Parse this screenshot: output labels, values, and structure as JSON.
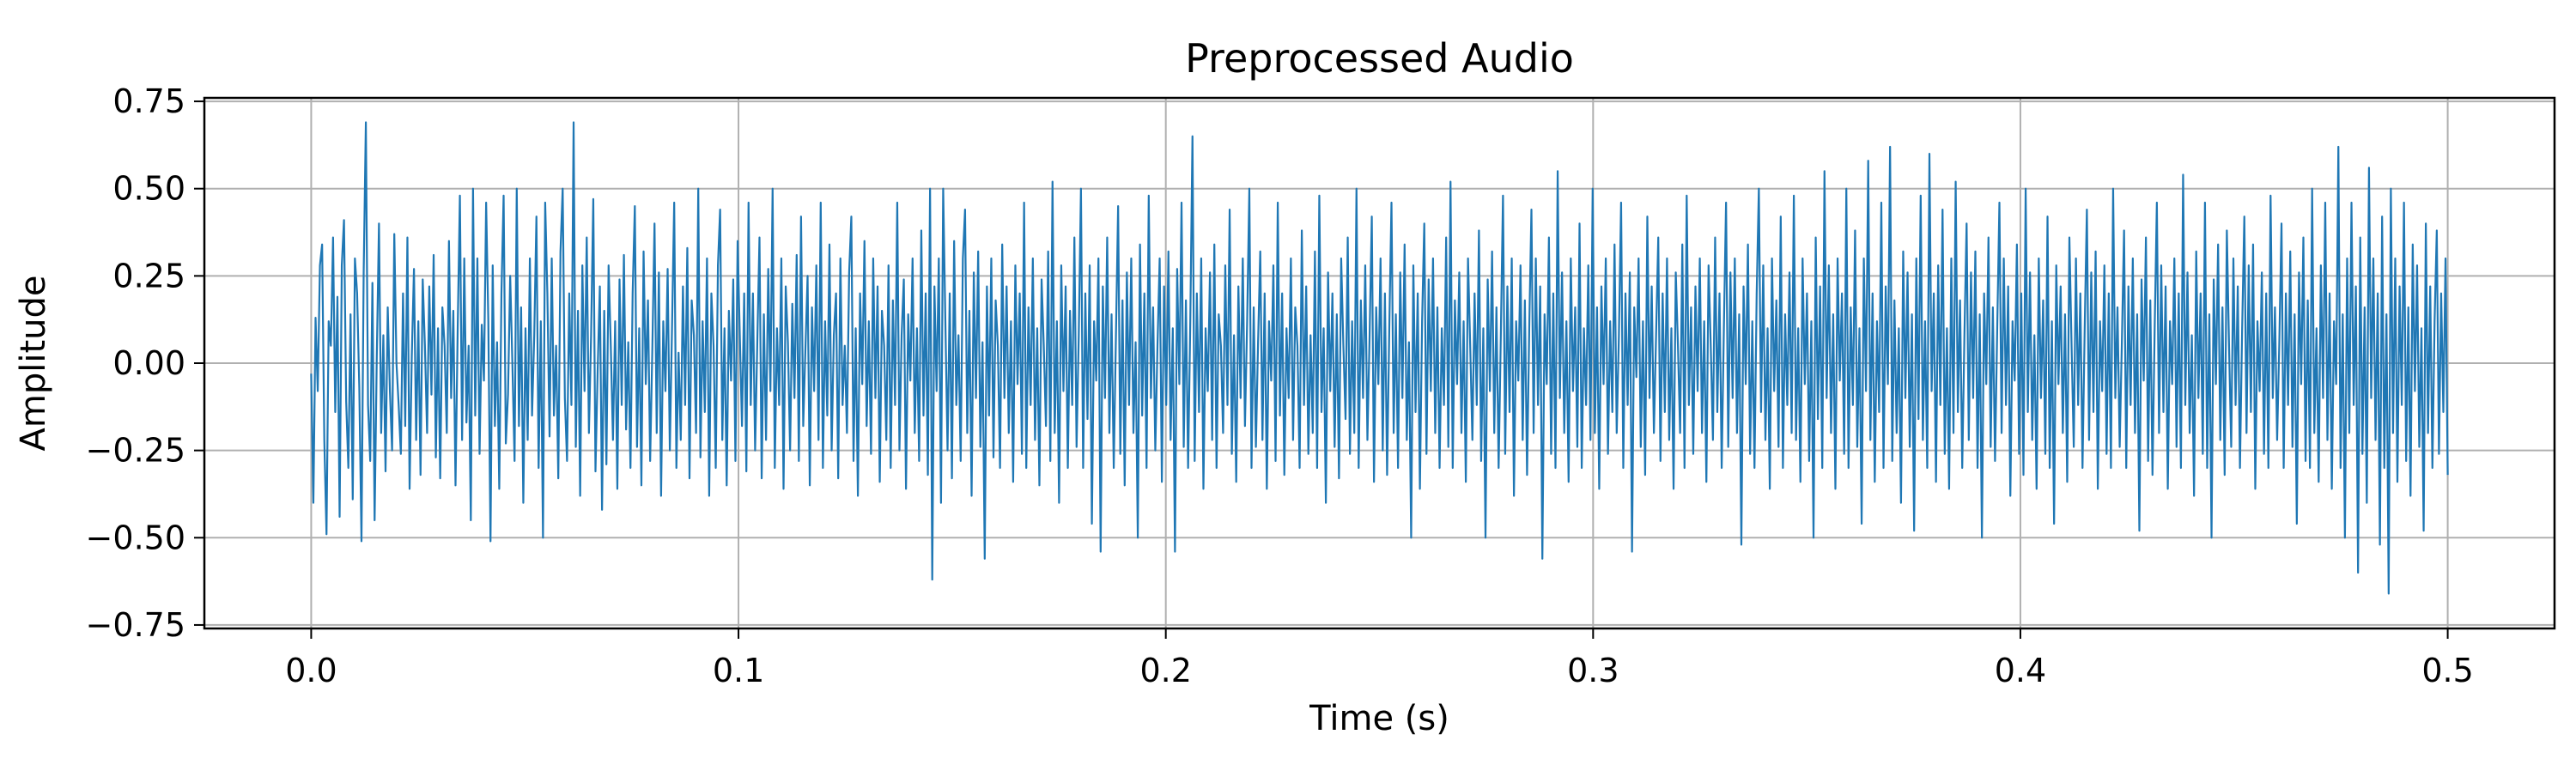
{
  "chart_data": {
    "type": "line",
    "title": "Preprocessed Audio",
    "xlabel": "Time (s)",
    "ylabel": "Amplitude",
    "xlim": [
      -0.025,
      0.525
    ],
    "ylim": [
      -0.76,
      0.76
    ],
    "xticks": [
      0.0,
      0.1,
      0.2,
      0.3,
      0.4,
      0.5
    ],
    "xtick_labels": [
      "0.0",
      "0.1",
      "0.2",
      "0.3",
      "0.4",
      "0.5"
    ],
    "yticks": [
      0.75,
      0.5,
      0.25,
      0.0,
      -0.25,
      -0.5,
      -0.75
    ],
    "ytick_labels": [
      "0.75",
      "0.50",
      "0.25",
      "0.00",
      "−0.25",
      "−0.50",
      "−0.75"
    ],
    "grid": true,
    "legend": "none",
    "colors": {
      "series": "#1f77b4",
      "grid": "#b0b0b0",
      "frame": "#000000"
    },
    "series": [
      {
        "x_start": 0.0,
        "x_end": 0.5,
        "values": [
          -0.03,
          -0.4,
          0.13,
          -0.08,
          0.28,
          0.34,
          -0.22,
          -0.49,
          0.12,
          0.05,
          0.36,
          -0.14,
          0.19,
          -0.44,
          0.28,
          0.41,
          -0.11,
          -0.3,
          0.14,
          -0.39,
          0.3,
          0.2,
          -0.07,
          -0.51,
          0.26,
          0.69,
          -0.12,
          -0.28,
          0.23,
          -0.45,
          0.02,
          0.4,
          -0.2,
          0.08,
          -0.31,
          0.16,
          -0.08,
          -0.25,
          0.37,
          0.0,
          -0.12,
          -0.26,
          0.2,
          -0.18,
          0.36,
          -0.36,
          0.02,
          0.27,
          -0.22,
          0.12,
          -0.32,
          0.24,
          0.05,
          -0.2,
          0.22,
          -0.09,
          0.31,
          -0.27,
          0.1,
          -0.33,
          0.16,
          0.05,
          -0.2,
          0.35,
          -0.1,
          0.15,
          -0.35,
          0.1,
          0.48,
          -0.22,
          0.3,
          -0.17,
          0.05,
          -0.45,
          0.5,
          -0.15,
          0.3,
          -0.26,
          0.11,
          -0.05,
          0.46,
          0.12,
          -0.51,
          0.28,
          -0.18,
          0.06,
          -0.36,
          0.2,
          0.48,
          -0.23,
          -0.09,
          0.25,
          0.0,
          -0.28,
          0.5,
          -0.18,
          0.16,
          -0.4,
          0.1,
          -0.22,
          0.3,
          -0.15,
          0.08,
          0.42,
          -0.3,
          0.12,
          -0.5,
          0.46,
          0.2,
          -0.21,
          0.3,
          -0.15,
          0.05,
          -0.33,
          0.32,
          0.5,
          -0.1,
          -0.28,
          0.2,
          -0.12,
          0.69,
          -0.24,
          0.15,
          -0.38,
          0.28,
          -0.08,
          0.36,
          -0.2,
          0.08,
          0.47,
          -0.31,
          -0.02,
          0.22,
          -0.42,
          0.15,
          -0.29,
          0.28,
          0.05,
          -0.22,
          0.12,
          -0.36,
          0.24,
          -0.12,
          0.31,
          -0.19,
          0.06,
          -0.3,
          0.2,
          0.45,
          -0.24,
          0.1,
          -0.35,
          0.32,
          -0.06,
          0.18,
          -0.28,
          0.04,
          0.4,
          -0.2,
          0.26,
          -0.38,
          0.12,
          -0.08,
          0.27,
          -0.25,
          0.1,
          0.46,
          -0.3,
          0.03,
          -0.22,
          0.22,
          -0.12,
          0.33,
          -0.33,
          0.18,
          0.08,
          -0.2,
          0.5,
          -0.27,
          0.12,
          -0.14,
          0.3,
          -0.38,
          0.2,
          0.05,
          -0.3,
          0.28,
          0.44,
          -0.22,
          0.1,
          -0.35,
          0.15,
          -0.05,
          0.24,
          -0.28,
          0.35,
          0.08,
          -0.18,
          0.2,
          -0.31,
          0.46,
          -0.12,
          0.2,
          -0.25,
          0.06,
          0.36,
          -0.33,
          0.14,
          -0.22,
          0.27,
          -0.08,
          0.5,
          -0.3,
          0.1,
          -0.12,
          0.3,
          -0.36,
          0.22,
          0.06,
          -0.25,
          0.17,
          -0.1,
          0.31,
          -0.28,
          0.42,
          -0.18,
          0.04,
          0.25,
          -0.35,
          0.16,
          -0.08,
          0.28,
          -0.22,
          0.46,
          -0.3,
          0.12,
          -0.15,
          0.34,
          -0.25,
          0.08,
          0.2,
          -0.33,
          0.3,
          -0.12,
          0.05,
          -0.2,
          0.26,
          0.42,
          -0.28,
          0.1,
          -0.38,
          0.2,
          -0.06,
          0.35,
          -0.18,
          0.12,
          -0.26,
          0.3,
          -0.1,
          0.22,
          -0.34,
          0.15,
          0.05,
          -0.22,
          0.28,
          -0.3,
          0.18,
          -0.12,
          0.46,
          -0.25,
          0.08,
          0.24,
          -0.36,
          0.14,
          -0.05,
          0.3,
          -0.2,
          0.1,
          -0.28,
          0.38,
          -0.15,
          0.2,
          -0.32,
          0.5,
          -0.62,
          0.22,
          -0.08,
          0.3,
          -0.4,
          0.5,
          0.12,
          -0.25,
          0.2,
          -0.33,
          0.35,
          -0.12,
          0.08,
          -0.28,
          0.3,
          0.44,
          -0.2,
          0.15,
          -0.38,
          0.26,
          -0.1,
          0.32,
          -0.24,
          0.06,
          -0.56,
          0.22,
          -0.15,
          0.3,
          -0.27,
          0.18,
          0.05,
          -0.3,
          0.34,
          -0.1,
          0.22,
          -0.2,
          0.12,
          -0.34,
          0.28,
          -0.06,
          0.2,
          -0.26,
          0.46,
          -0.3,
          0.16,
          -0.12,
          0.3,
          -0.22,
          0.1,
          -0.35,
          0.24,
          0.05,
          -0.18,
          0.32,
          -0.28,
          0.52,
          -0.2,
          0.12,
          -0.4,
          0.28,
          -0.08,
          0.22,
          -0.3,
          0.15,
          -0.12,
          0.36,
          -0.24,
          0.08,
          0.5,
          -0.3,
          0.2,
          -0.16,
          0.28,
          -0.46,
          0.12,
          -0.05,
          0.3,
          -0.54,
          0.22,
          -0.1,
          0.36,
          -0.2,
          0.14,
          -0.3,
          0.08,
          0.45,
          -0.26,
          0.18,
          -0.35,
          0.26,
          -0.12,
          0.3,
          -0.2,
          0.06,
          -0.5,
          0.34,
          -0.15,
          0.2,
          -0.3,
          0.48,
          -0.1,
          0.16,
          -0.25,
          0.05,
          0.3,
          -0.34,
          0.22,
          -0.12,
          0.32,
          -0.22,
          0.1,
          -0.54,
          0.27,
          -0.06,
          0.46,
          -0.24,
          0.18,
          -0.3,
          0.12,
          0.65,
          -0.28,
          0.2,
          -0.14,
          0.3,
          -0.36,
          0.1,
          -0.08,
          0.26,
          -0.22,
          0.34,
          -0.3,
          0.14,
          0.05,
          -0.2,
          0.28,
          -0.12,
          0.44,
          -0.26,
          0.08,
          -0.34,
          0.22,
          -0.1,
          0.3,
          -0.18,
          0.12,
          0.5,
          -0.3,
          0.16,
          -0.24,
          0.06,
          0.32,
          -0.22,
          0.2,
          -0.36,
          0.12,
          -0.05,
          0.28,
          -0.28,
          0.46,
          -0.15,
          0.2,
          -0.32,
          0.1,
          -0.1,
          0.3,
          -0.22,
          0.16,
          0.05,
          -0.3,
          0.38,
          -0.12,
          0.22,
          -0.26,
          0.08,
          -0.2,
          0.32,
          -0.3,
          0.48,
          -0.14,
          0.1,
          -0.4,
          0.26,
          -0.08,
          0.2,
          -0.24,
          0.14,
          -0.33,
          0.3,
          0.05,
          -0.16,
          0.36,
          -0.26,
          0.12,
          -0.2,
          0.5,
          -0.3,
          0.18,
          -0.1,
          0.28,
          -0.22,
          0.08,
          0.42,
          -0.34,
          0.16,
          -0.06,
          0.3,
          -0.25,
          0.2,
          -0.32,
          0.1,
          0.46,
          -0.2,
          0.14,
          -0.3,
          0.26,
          -0.1,
          0.34,
          -0.22,
          0.06,
          -0.5,
          0.28,
          -0.14,
          0.2,
          -0.36,
          0.12,
          0.4,
          -0.26,
          0.24,
          -0.08,
          0.3,
          -0.2,
          0.16,
          -0.3,
          0.1,
          -0.12,
          0.36,
          -0.24,
          0.52,
          -0.3,
          0.18,
          -0.06,
          0.26,
          -0.2,
          0.12,
          -0.34,
          0.3,
          0.05,
          -0.22,
          0.2,
          -0.12,
          0.38,
          -0.28,
          0.1,
          -0.5,
          0.24,
          -0.08,
          0.32,
          -0.2,
          0.16,
          -0.3,
          0.08,
          0.48,
          -0.26,
          0.22,
          -0.14,
          0.3,
          -0.38,
          0.12,
          -0.05,
          0.28,
          -0.22,
          0.18,
          -0.32,
          0.1,
          0.44,
          -0.2,
          0.3,
          -0.12,
          0.22,
          -0.56,
          0.14,
          -0.06,
          0.36,
          -0.26,
          0.2,
          -0.3,
          0.55,
          -0.1,
          0.26,
          -0.2,
          0.12,
          -0.34,
          0.3,
          -0.08,
          0.16,
          -0.24,
          0.4,
          -0.3,
          0.1,
          -0.12,
          0.28,
          -0.22,
          0.5,
          -0.2,
          0.16,
          -0.36,
          0.22,
          -0.06,
          0.3,
          -0.26,
          0.12,
          -0.14,
          0.34,
          -0.2,
          0.08,
          0.46,
          -0.3,
          0.2,
          -0.12,
          0.26,
          -0.54,
          0.16,
          -0.04,
          0.3,
          -0.24,
          0.12,
          -0.32,
          0.42,
          -0.1,
          0.22,
          -0.2,
          0.08,
          0.36,
          -0.28,
          0.2,
          -0.14,
          0.3,
          -0.22,
          0.1,
          -0.36,
          0.26,
          0.05,
          -0.2,
          0.34,
          -0.3,
          0.48,
          -0.12,
          0.16,
          -0.26,
          0.22,
          -0.08,
          0.3,
          -0.2,
          0.12,
          -0.34,
          0.28,
          0.05,
          -0.22,
          0.36,
          -0.14,
          0.2,
          -0.3,
          0.1,
          0.46,
          -0.24,
          0.26,
          -0.1,
          0.3,
          -0.2,
          0.14,
          -0.52,
          0.22,
          -0.06,
          0.34,
          -0.26,
          0.12,
          -0.3,
          0.2,
          0.5,
          -0.14,
          0.28,
          -0.22,
          0.1,
          -0.36,
          0.3,
          -0.08,
          0.18,
          -0.24,
          0.42,
          -0.3,
          0.14,
          -0.12,
          0.26,
          -0.2,
          0.48,
          -0.22,
          0.1,
          -0.34,
          0.3,
          -0.06,
          0.2,
          -0.28,
          0.12,
          -0.5,
          0.36,
          -0.16,
          0.22,
          -0.3,
          0.55,
          -0.1,
          0.28,
          -0.2,
          0.14,
          -0.36,
          0.3,
          -0.05,
          0.2,
          -0.26,
          0.5,
          -0.3,
          0.16,
          -0.12,
          0.38,
          -0.24,
          0.1,
          -0.46,
          0.3,
          -0.08,
          0.58,
          -0.22,
          0.2,
          -0.34,
          0.12,
          -0.14,
          0.46,
          -0.3,
          0.22,
          -0.06,
          0.62,
          -0.28,
          0.18,
          -0.2,
          0.1,
          -0.4,
          0.32,
          -0.1,
          0.26,
          -0.24,
          0.14,
          -0.48,
          0.3,
          -0.16,
          0.48,
          -0.22,
          0.12,
          -0.3,
          0.6,
          -0.08,
          0.2,
          -0.34,
          0.28,
          -0.12,
          0.44,
          -0.26,
          0.1,
          -0.36,
          0.3,
          -0.2,
          0.52,
          -0.14,
          0.18,
          -0.3,
          0.08,
          0.4,
          -0.22,
          0.26,
          -0.1,
          0.32,
          -0.3,
          0.14,
          -0.5,
          0.2,
          -0.06,
          0.36,
          -0.24,
          0.16,
          -0.28,
          0.1,
          0.46,
          -0.2,
          0.3,
          -0.12,
          0.22,
          -0.38,
          0.12,
          -0.05,
          0.34,
          -0.26,
          0.2,
          -0.32,
          0.5,
          -0.14,
          0.26,
          -0.22,
          0.08,
          -0.36,
          0.3,
          -0.1,
          0.18,
          -0.26,
          0.42,
          -0.3,
          0.12,
          -0.46,
          0.28,
          -0.06,
          0.22,
          -0.2,
          0.14,
          -0.34,
          0.36,
          0.05,
          -0.24,
          0.3,
          -0.12,
          0.2,
          -0.3,
          0.1,
          0.44,
          -0.22,
          0.26,
          -0.14,
          0.32,
          -0.36,
          0.12,
          -0.08,
          0.28,
          -0.26,
          0.2,
          -0.3,
          0.5,
          -0.1,
          0.16,
          -0.24,
          0.06,
          0.38,
          -0.3,
          0.22,
          -0.12,
          0.3,
          -0.2,
          0.14,
          -0.48,
          0.24,
          -0.05,
          0.36,
          -0.28,
          0.18,
          -0.32,
          0.1,
          0.46,
          -0.2,
          0.28,
          -0.14,
          0.22,
          -0.36,
          0.12,
          -0.06,
          0.3,
          -0.24,
          0.2,
          -0.3,
          0.54,
          -0.12,
          0.26,
          -0.2,
          0.08,
          -0.38,
          0.32,
          -0.1,
          0.2,
          -0.26,
          0.46,
          -0.3,
          0.14,
          -0.5,
          0.24,
          -0.06,
          0.34,
          -0.22,
          0.16,
          -0.32,
          0.38,
          0.05,
          -0.24,
          0.3,
          -0.12,
          0.22,
          -0.3,
          0.1,
          0.42,
          -0.2,
          0.28,
          -0.14,
          0.34,
          -0.36,
          0.12,
          -0.08,
          0.26,
          -0.26,
          0.2,
          -0.3,
          0.48,
          -0.1,
          0.16,
          -0.22,
          0.06,
          0.4,
          -0.3,
          0.2,
          -0.12,
          0.32,
          -0.24,
          0.14,
          -0.46,
          0.26,
          -0.06,
          0.36,
          -0.28,
          0.18,
          -0.3,
          0.5,
          -0.2,
          0.1,
          -0.34,
          0.28,
          -0.1,
          0.46,
          -0.22,
          0.2,
          -0.36,
          0.12,
          -0.06,
          0.62,
          -0.3,
          0.14,
          -0.5,
          0.3,
          -0.2,
          0.46,
          -0.12,
          0.22,
          -0.6,
          0.36,
          -0.26,
          0.16,
          -0.4,
          0.56,
          -0.1,
          0.3,
          -0.22,
          0.2,
          -0.52,
          0.42,
          -0.3,
          0.14,
          -0.66,
          0.5,
          -0.2,
          0.3,
          -0.34,
          0.22,
          -0.12,
          0.46,
          -0.28,
          0.16,
          -0.38,
          0.34,
          -0.08,
          0.28,
          -0.24,
          0.1,
          -0.48,
          0.4,
          -0.2,
          0.22,
          -0.3,
          0.12,
          0.38,
          -0.26,
          0.2,
          -0.14,
          0.3,
          -0.32
        ]
      }
    ]
  }
}
